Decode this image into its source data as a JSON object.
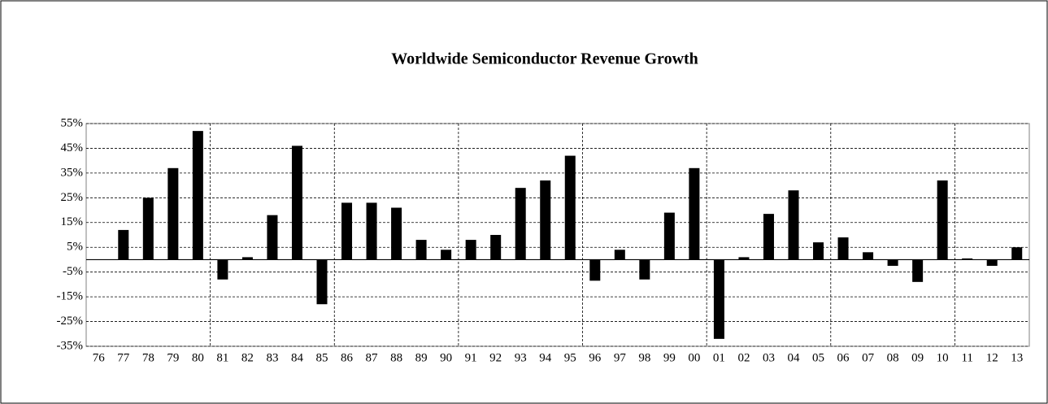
{
  "chart_data": {
    "type": "bar",
    "title": "Worldwide Semiconductor Revenue Growth",
    "categories": [
      "76",
      "77",
      "78",
      "79",
      "80",
      "81",
      "82",
      "83",
      "84",
      "85",
      "86",
      "87",
      "88",
      "89",
      "90",
      "91",
      "92",
      "93",
      "94",
      "95",
      "96",
      "97",
      "98",
      "99",
      "00",
      "01",
      "02",
      "03",
      "04",
      "05",
      "06",
      "07",
      "08",
      "09",
      "10",
      "11",
      "12",
      "13"
    ],
    "values": [
      null,
      12,
      25,
      37,
      52,
      -8,
      1,
      18,
      46,
      -18,
      23,
      23,
      21,
      8,
      4,
      8,
      10,
      29,
      32,
      42,
      -8.5,
      4,
      -8,
      19,
      37,
      -32,
      1,
      18.5,
      28,
      7,
      9,
      3,
      -2.5,
      -9,
      32,
      0.5,
      -2.5,
      5
    ],
    "color": "#000000",
    "ylim": [
      -35,
      55
    ],
    "yticks": [
      {
        "value": 55,
        "label": "55%"
      },
      {
        "value": 45,
        "label": "45%"
      },
      {
        "value": 35,
        "label": "35%"
      },
      {
        "value": 25,
        "label": "25%"
      },
      {
        "value": 15,
        "label": "15%"
      },
      {
        "value": 5,
        "label": "5%"
      },
      {
        "value": -5,
        "label": "-5%"
      },
      {
        "value": -15,
        "label": "-15%"
      },
      {
        "value": -25,
        "label": "-25%"
      },
      {
        "value": -35,
        "label": "-35%"
      }
    ],
    "grid": true
  }
}
